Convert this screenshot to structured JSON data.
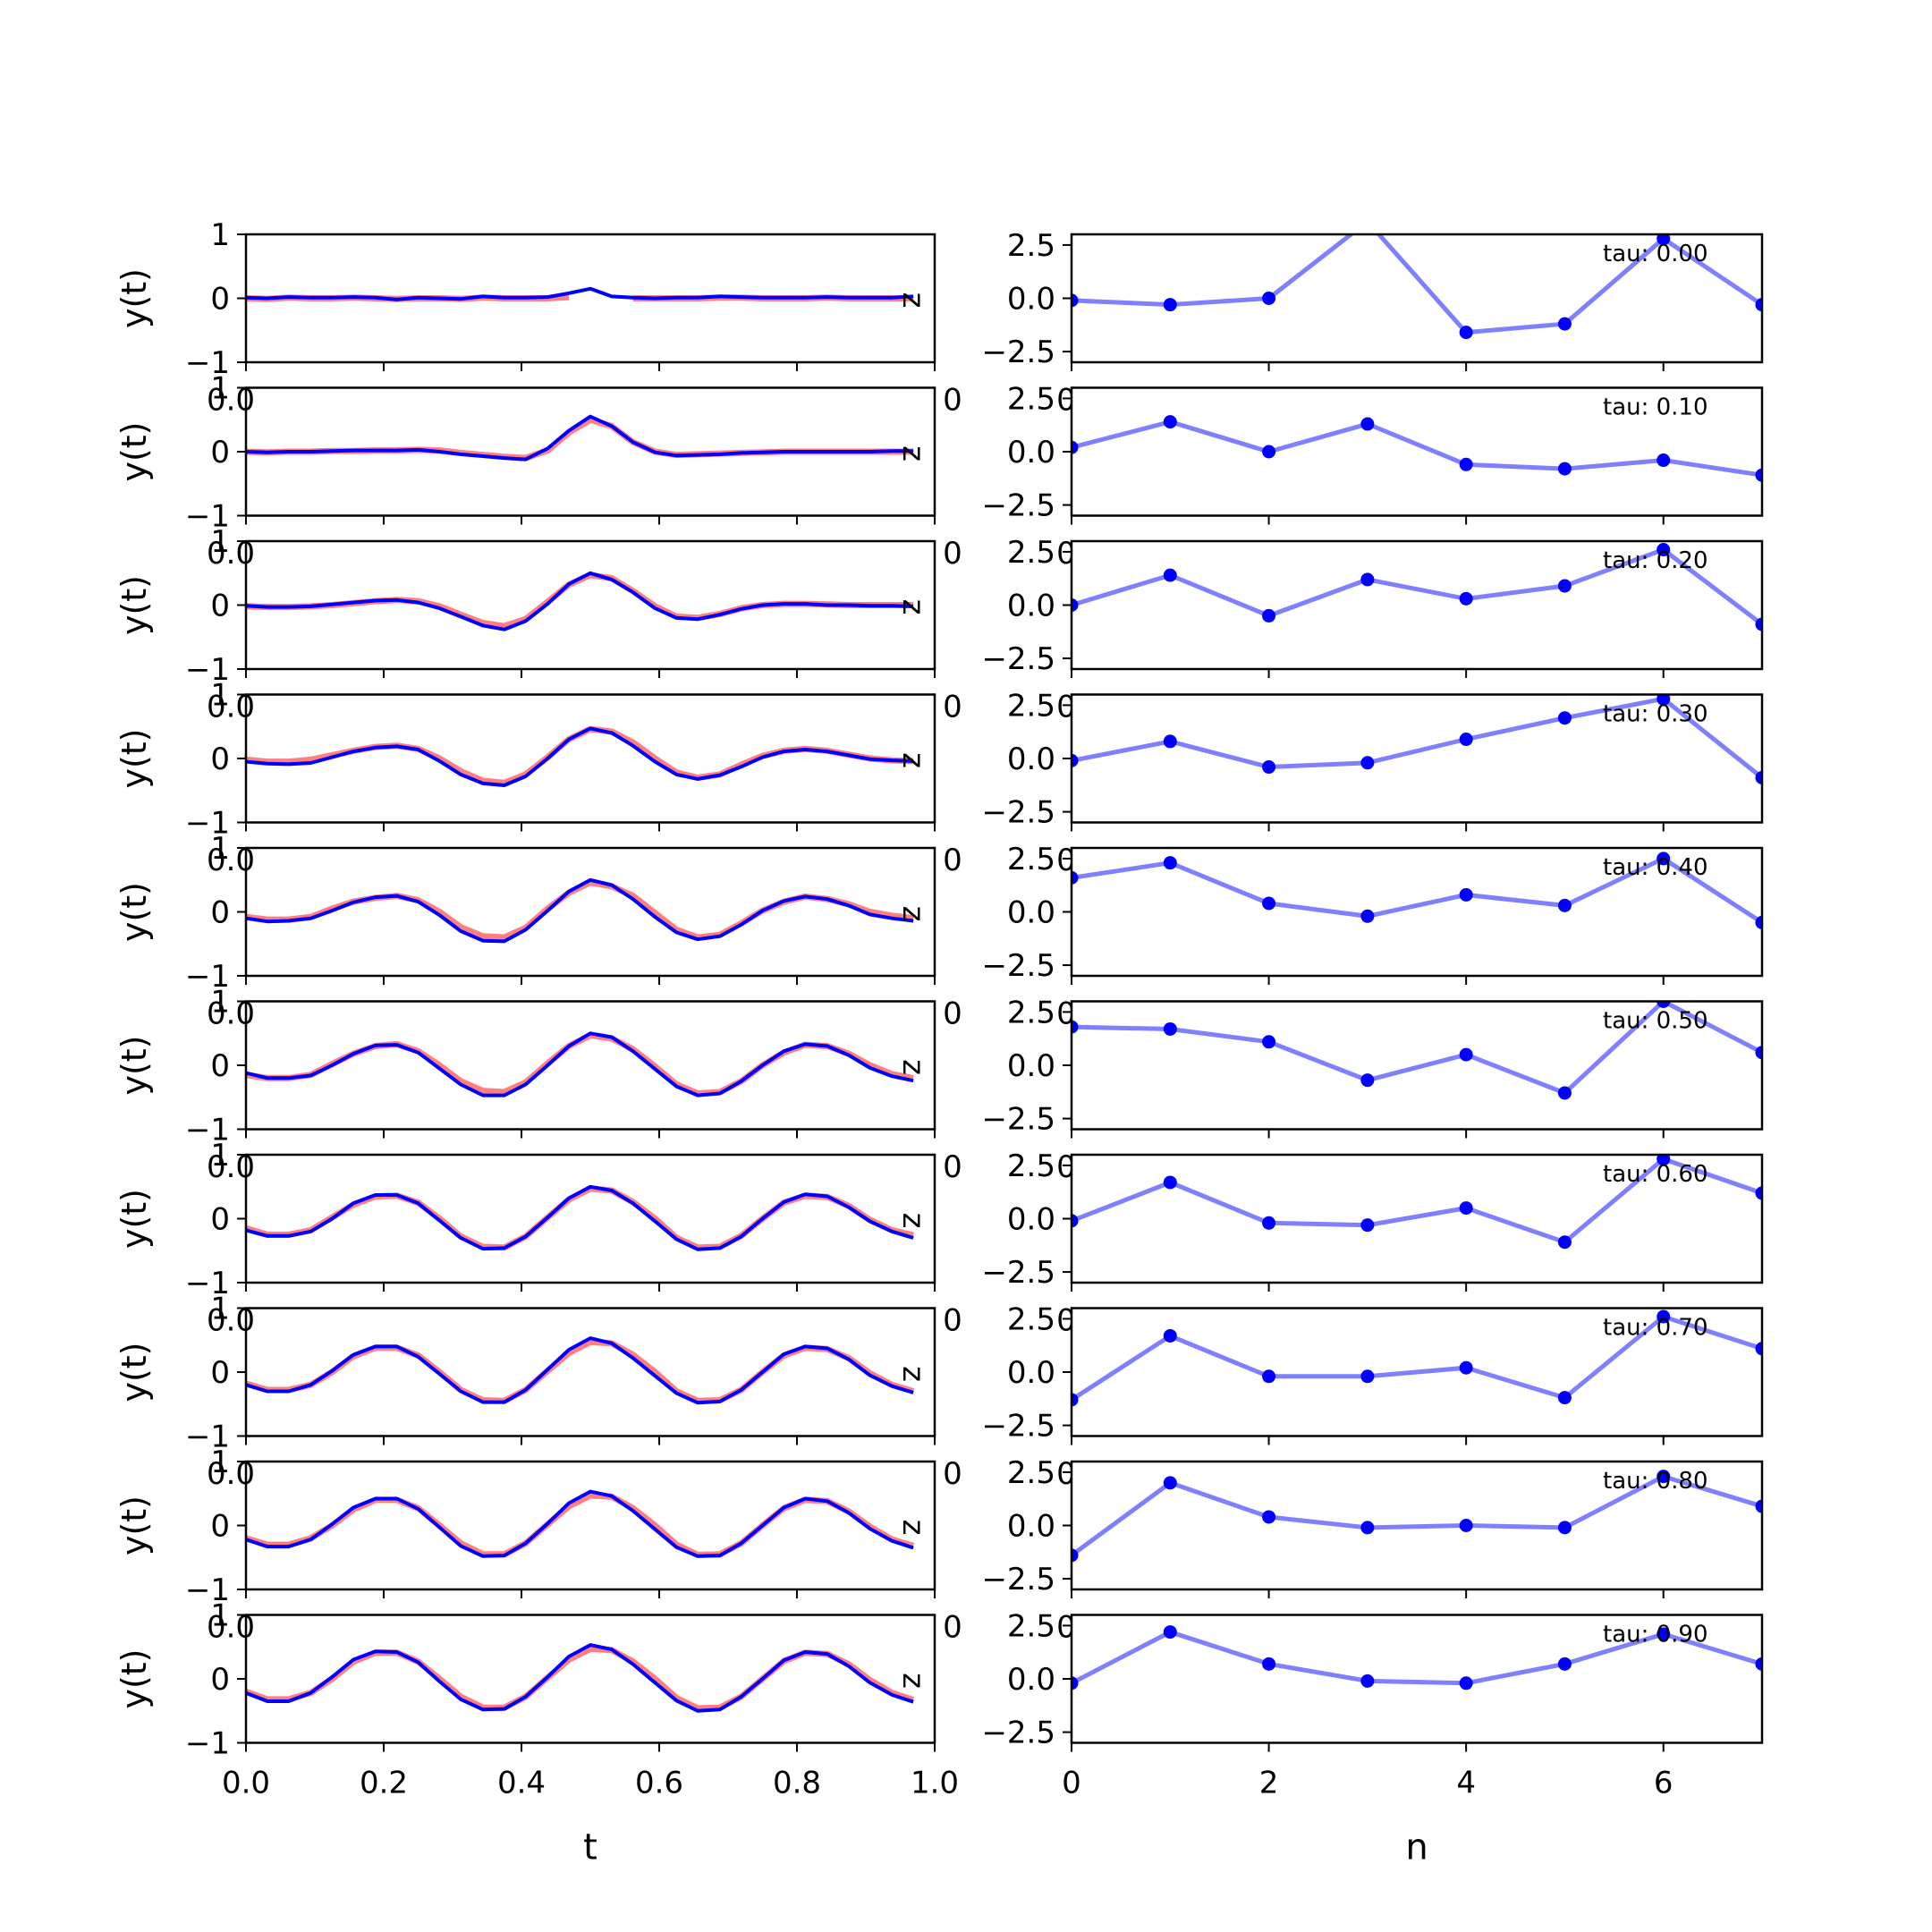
{
  "chart_data": {
    "type": "line",
    "left_column": {
      "xlabel": "t",
      "ylabel": "y(t)",
      "xlim": [
        0.0,
        1.0
      ],
      "ylim": [
        -1,
        1
      ],
      "xticks": [
        "0.0",
        "0.2",
        "0.4",
        "0.6",
        "0.8",
        "1.0"
      ],
      "yticks": [
        "1",
        "0",
        "−1"
      ],
      "marker_text": "z",
      "series_colors": {
        "red": "#ff0000",
        "blue": "#0000ff"
      }
    },
    "right_column": {
      "xlabel": "n",
      "xlim": [
        0,
        7
      ],
      "ylim": [
        -3.0,
        3.0
      ],
      "xticks": [
        "0",
        "2",
        "4",
        "6"
      ],
      "yticks": [
        "2.5",
        "0.0",
        "−2.5"
      ],
      "series_color": "#0000ff"
    },
    "t": [
      0.0,
      0.031,
      0.062,
      0.094,
      0.125,
      0.156,
      0.188,
      0.219,
      0.25,
      0.281,
      0.312,
      0.344,
      0.375,
      0.406,
      0.438,
      0.469,
      0.5,
      0.531,
      0.562,
      0.594,
      0.625,
      0.656,
      0.688,
      0.719,
      0.75,
      0.781,
      0.812,
      0.844,
      0.875,
      0.906,
      0.938,
      0.969
    ],
    "n": [
      0,
      1,
      2,
      3,
      4,
      5,
      6,
      7
    ],
    "panels": [
      {
        "tau_label": "tau: 0.00",
        "red": [
          0.0,
          -0.01,
          0.01,
          0.0,
          0.0,
          0.01,
          0.0,
          -0.01,
          0.0,
          0.0,
          -0.01,
          0.01,
          0.0,
          0.0,
          0.0,
          0.02,
          null,
          null,
          0.0,
          0.0,
          0.0,
          0.0,
          0.01,
          0.01,
          0.0,
          0.0,
          0.0,
          0.01,
          0.0,
          0.0,
          0.0,
          0.0
        ],
        "blue": [
          0.01,
          0.0,
          0.02,
          0.01,
          0.01,
          0.02,
          0.01,
          -0.02,
          0.01,
          0.0,
          -0.01,
          0.03,
          0.01,
          0.01,
          0.02,
          0.08,
          0.15,
          0.03,
          0.01,
          0.0,
          0.01,
          0.01,
          0.03,
          0.02,
          0.01,
          0.01,
          0.01,
          0.02,
          0.01,
          0.01,
          0.01,
          0.03
        ],
        "coeffs": [
          -0.1,
          -0.3,
          0.0,
          3.6,
          -1.6,
          -1.2,
          2.8,
          -0.3
        ]
      },
      {
        "tau_label": "tau: 0.10",
        "red": [
          0.0,
          -0.01,
          0.0,
          0.0,
          0.01,
          0.01,
          0.02,
          0.02,
          0.03,
          0.02,
          -0.02,
          -0.05,
          -0.08,
          -0.1,
          0.02,
          0.3,
          0.5,
          0.4,
          0.15,
          0.0,
          -0.05,
          -0.04,
          -0.03,
          -0.02,
          -0.01,
          0.0,
          0.0,
          0.0,
          0.0,
          0.0,
          0.0,
          0.0
        ],
        "blue": [
          0.0,
          -0.01,
          0.0,
          0.0,
          0.01,
          0.02,
          0.02,
          0.02,
          0.03,
          0.0,
          -0.04,
          -0.07,
          -0.1,
          -0.12,
          0.05,
          0.33,
          0.55,
          0.4,
          0.15,
          -0.01,
          -0.06,
          -0.05,
          -0.04,
          -0.02,
          -0.01,
          0.0,
          0.0,
          0.0,
          0.0,
          0.0,
          0.01,
          0.01
        ],
        "coeffs": [
          0.2,
          1.4,
          0.0,
          1.3,
          -0.6,
          -0.8,
          -0.4,
          -1.1
        ]
      },
      {
        "tau_label": "tau: 0.20",
        "red": [
          -0.02,
          -0.03,
          -0.03,
          -0.02,
          0.0,
          0.03,
          0.06,
          0.08,
          0.06,
          -0.02,
          -0.15,
          -0.28,
          -0.33,
          -0.22,
          0.05,
          0.32,
          0.47,
          0.42,
          0.22,
          -0.02,
          -0.18,
          -0.2,
          -0.14,
          -0.05,
          0.0,
          0.02,
          0.02,
          0.01,
          0.0,
          0.0,
          0.0,
          0.0
        ],
        "blue": [
          -0.01,
          -0.03,
          -0.03,
          -0.02,
          0.01,
          0.04,
          0.07,
          0.08,
          0.04,
          -0.05,
          -0.18,
          -0.32,
          -0.38,
          -0.25,
          0.02,
          0.33,
          0.5,
          0.4,
          0.2,
          -0.05,
          -0.2,
          -0.22,
          -0.15,
          -0.06,
          0.0,
          0.02,
          0.02,
          0.0,
          0.0,
          -0.01,
          -0.01,
          -0.02
        ],
        "coeffs": [
          0.0,
          1.4,
          -0.5,
          1.2,
          0.3,
          0.9,
          2.6,
          -0.9
        ]
      },
      {
        "tau_label": "tau: 0.30",
        "red": [
          -0.02,
          -0.05,
          -0.05,
          -0.02,
          0.05,
          0.12,
          0.18,
          0.2,
          0.15,
          0.0,
          -0.2,
          -0.35,
          -0.38,
          -0.25,
          0.02,
          0.3,
          0.46,
          0.42,
          0.25,
          0.0,
          -0.22,
          -0.3,
          -0.25,
          -0.1,
          0.04,
          0.12,
          0.15,
          0.12,
          0.06,
          0.0,
          -0.03,
          -0.04
        ],
        "blue": [
          -0.05,
          -0.08,
          -0.09,
          -0.07,
          0.02,
          0.11,
          0.17,
          0.19,
          0.14,
          -0.04,
          -0.25,
          -0.39,
          -0.42,
          -0.28,
          0.0,
          0.3,
          0.47,
          0.4,
          0.2,
          -0.05,
          -0.25,
          -0.32,
          -0.26,
          -0.13,
          0.02,
          0.11,
          0.14,
          0.11,
          0.05,
          -0.01,
          -0.03,
          -0.04
        ],
        "coeffs": [
          -0.1,
          0.8,
          -0.4,
          -0.2,
          0.9,
          1.9,
          2.8,
          -0.9
        ]
      },
      {
        "tau_label": "tau: 0.40",
        "red": [
          -0.08,
          -0.12,
          -0.12,
          -0.08,
          0.05,
          0.16,
          0.22,
          0.25,
          0.18,
          0.0,
          -0.24,
          -0.38,
          -0.4,
          -0.25,
          0.05,
          0.3,
          0.46,
          0.4,
          0.25,
          -0.02,
          -0.28,
          -0.4,
          -0.36,
          -0.18,
          0.02,
          0.16,
          0.24,
          0.2,
          0.12,
          0.0,
          -0.06,
          -0.1
        ],
        "blue": [
          -0.1,
          -0.15,
          -0.14,
          -0.1,
          0.02,
          0.15,
          0.23,
          0.25,
          0.16,
          -0.05,
          -0.3,
          -0.45,
          -0.46,
          -0.28,
          0.02,
          0.32,
          0.5,
          0.42,
          0.2,
          -0.08,
          -0.32,
          -0.43,
          -0.38,
          -0.2,
          0.02,
          0.17,
          0.24,
          0.2,
          0.1,
          -0.04,
          -0.1,
          -0.14
        ],
        "coeffs": [
          1.6,
          2.3,
          0.4,
          -0.2,
          0.8,
          0.3,
          2.5,
          -0.5
        ]
      },
      {
        "tau_label": "tau: 0.50",
        "red": [
          -0.15,
          -0.2,
          -0.2,
          -0.15,
          0.02,
          0.18,
          0.3,
          0.33,
          0.22,
          0.0,
          -0.25,
          -0.4,
          -0.42,
          -0.27,
          0.03,
          0.3,
          0.47,
          0.42,
          0.25,
          -0.02,
          -0.3,
          -0.44,
          -0.42,
          -0.25,
          0.0,
          0.2,
          0.32,
          0.3,
          0.18,
          0.0,
          -0.14,
          -0.2
        ],
        "blue": [
          -0.12,
          -0.2,
          -0.2,
          -0.16,
          0.0,
          0.18,
          0.31,
          0.32,
          0.2,
          -0.05,
          -0.3,
          -0.47,
          -0.47,
          -0.3,
          0.0,
          0.3,
          0.5,
          0.44,
          0.22,
          -0.06,
          -0.33,
          -0.47,
          -0.44,
          -0.25,
          0.0,
          0.22,
          0.33,
          0.3,
          0.16,
          -0.04,
          -0.17,
          -0.24
        ],
        "coeffs": [
          1.8,
          1.7,
          1.1,
          -0.7,
          0.5,
          -1.3,
          3.0,
          0.6
        ]
      },
      {
        "tau_label": "tau: 0.60",
        "red": [
          -0.15,
          -0.25,
          -0.25,
          -0.18,
          0.02,
          0.22,
          0.35,
          0.36,
          0.25,
          0.0,
          -0.28,
          -0.44,
          -0.45,
          -0.28,
          0.02,
          0.3,
          0.47,
          0.44,
          0.26,
          0.0,
          -0.3,
          -0.45,
          -0.44,
          -0.27,
          0.0,
          0.25,
          0.36,
          0.34,
          0.2,
          -0.02,
          -0.18,
          -0.26
        ],
        "blue": [
          -0.18,
          -0.27,
          -0.27,
          -0.2,
          0.0,
          0.24,
          0.37,
          0.37,
          0.24,
          -0.03,
          -0.3,
          -0.47,
          -0.46,
          -0.28,
          0.02,
          0.32,
          0.5,
          0.44,
          0.24,
          -0.04,
          -0.32,
          -0.48,
          -0.46,
          -0.28,
          0.0,
          0.26,
          0.38,
          0.35,
          0.18,
          -0.04,
          -0.2,
          -0.3
        ],
        "coeffs": [
          -0.1,
          1.7,
          -0.2,
          -0.3,
          0.5,
          -1.1,
          2.8,
          1.2
        ]
      },
      {
        "tau_label": "tau: 0.70",
        "red": [
          -0.18,
          -0.28,
          -0.28,
          -0.2,
          0.0,
          0.25,
          0.38,
          0.38,
          0.26,
          0.0,
          -0.28,
          -0.44,
          -0.45,
          -0.28,
          0.02,
          0.3,
          0.47,
          0.45,
          0.27,
          0.0,
          -0.3,
          -0.45,
          -0.44,
          -0.28,
          0.0,
          0.26,
          0.38,
          0.36,
          0.22,
          -0.02,
          -0.2,
          -0.3
        ],
        "blue": [
          -0.2,
          -0.3,
          -0.3,
          -0.2,
          0.02,
          0.27,
          0.4,
          0.4,
          0.24,
          -0.03,
          -0.3,
          -0.47,
          -0.47,
          -0.28,
          0.04,
          0.35,
          0.53,
          0.45,
          0.22,
          -0.06,
          -0.33,
          -0.48,
          -0.46,
          -0.28,
          0.0,
          0.28,
          0.4,
          0.37,
          0.2,
          -0.05,
          -0.22,
          -0.32
        ],
        "coeffs": [
          -1.3,
          1.7,
          -0.2,
          -0.2,
          0.2,
          -1.2,
          2.6,
          1.1
        ]
      },
      {
        "tau_label": "tau: 0.80",
        "red": [
          -0.2,
          -0.3,
          -0.3,
          -0.2,
          0.0,
          0.25,
          0.4,
          0.4,
          0.27,
          0.0,
          -0.28,
          -0.45,
          -0.45,
          -0.28,
          0.02,
          0.3,
          0.47,
          0.45,
          0.27,
          0.0,
          -0.3,
          -0.46,
          -0.45,
          -0.28,
          0.0,
          0.27,
          0.4,
          0.38,
          0.22,
          -0.02,
          -0.22,
          -0.32
        ],
        "blue": [
          -0.22,
          -0.33,
          -0.33,
          -0.22,
          0.02,
          0.28,
          0.42,
          0.42,
          0.26,
          -0.03,
          -0.32,
          -0.48,
          -0.47,
          -0.28,
          0.03,
          0.35,
          0.53,
          0.46,
          0.23,
          -0.06,
          -0.34,
          -0.48,
          -0.47,
          -0.28,
          0.0,
          0.28,
          0.42,
          0.38,
          0.2,
          -0.05,
          -0.24,
          -0.35
        ],
        "coeffs": [
          -1.4,
          2.0,
          0.4,
          -0.1,
          0.0,
          -0.1,
          2.3,
          0.9
        ]
      },
      {
        "tau_label": "tau: 0.90",
        "red": [
          -0.2,
          -0.32,
          -0.32,
          -0.22,
          0.0,
          0.27,
          0.41,
          0.41,
          0.27,
          0.0,
          -0.28,
          -0.45,
          -0.45,
          -0.28,
          0.02,
          0.3,
          0.47,
          0.45,
          0.27,
          0.0,
          -0.3,
          -0.46,
          -0.45,
          -0.28,
          0.0,
          0.28,
          0.41,
          0.39,
          0.23,
          -0.02,
          -0.22,
          -0.33
        ],
        "blue": [
          -0.22,
          -0.35,
          -0.35,
          -0.22,
          0.03,
          0.3,
          0.43,
          0.42,
          0.26,
          -0.04,
          -0.32,
          -0.48,
          -0.47,
          -0.28,
          0.03,
          0.35,
          0.53,
          0.46,
          0.23,
          -0.06,
          -0.34,
          -0.5,
          -0.48,
          -0.28,
          0.0,
          0.29,
          0.42,
          0.39,
          0.2,
          -0.06,
          -0.25,
          -0.36
        ],
        "coeffs": [
          -0.2,
          2.2,
          0.7,
          -0.1,
          -0.2,
          0.7,
          2.1,
          0.7
        ]
      }
    ]
  }
}
